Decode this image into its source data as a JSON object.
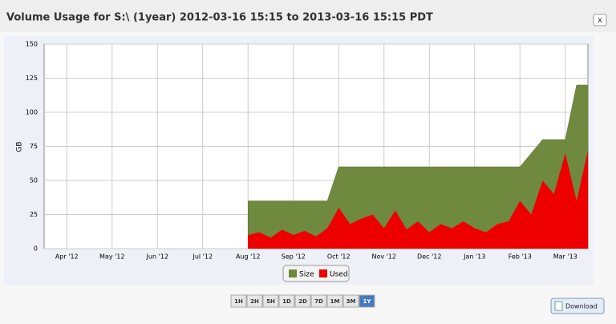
{
  "chart_data": {
    "type": "area",
    "title": "Volume Usage for S:\\ (1year) 2012-03-16 15:15 to 2013-03-16 15:15 PDT",
    "y_label": "GB",
    "categories": [
      null,
      null,
      "Apr '12",
      null,
      null,
      null,
      "May '12",
      null,
      null,
      null,
      "Jun '12",
      null,
      null,
      null,
      "Jul '12",
      null,
      null,
      null,
      "Aug '12",
      null,
      null,
      null,
      "Sep '12",
      null,
      null,
      null,
      "Oct '12",
      null,
      null,
      null,
      "Nov '12",
      null,
      null,
      null,
      "Dec '12",
      null,
      null,
      null,
      "Jan '13",
      null,
      null,
      null,
      "Feb '13",
      null,
      null,
      null,
      "Mar '13",
      null,
      null
    ],
    "series": [
      {
        "name": "Size",
        "color": "#6f8a3f",
        "values": [
          null,
          null,
          null,
          null,
          null,
          null,
          null,
          null,
          null,
          null,
          null,
          null,
          null,
          null,
          null,
          null,
          null,
          null,
          35,
          35,
          35,
          35,
          35,
          35,
          35,
          35,
          60,
          60,
          60,
          60,
          60,
          60,
          60,
          60,
          60,
          60,
          60,
          60,
          60,
          60,
          60,
          60,
          60,
          70,
          80,
          80,
          80,
          120,
          120
        ]
      },
      {
        "name": "Used",
        "color": "#ee0000",
        "values": [
          null,
          null,
          null,
          null,
          null,
          null,
          null,
          null,
          null,
          null,
          null,
          null,
          null,
          null,
          null,
          null,
          null,
          null,
          10,
          12,
          8,
          14,
          10,
          13,
          9,
          15,
          30,
          18,
          22,
          25,
          15,
          28,
          14,
          20,
          12,
          18,
          15,
          20,
          15,
          12,
          18,
          20,
          35,
          25,
          50,
          40,
          70,
          35,
          72
        ]
      }
    ],
    "ylim": [
      0,
      150
    ],
    "yticks": [
      0,
      25,
      50,
      75,
      100,
      125,
      150
    ],
    "grid": true,
    "legend": "bottom"
  },
  "ui": {
    "close": "x",
    "range_buttons": [
      "1H",
      "2H",
      "5H",
      "1D",
      "2D",
      "7D",
      "1M",
      "3M",
      "1Y"
    ],
    "selected": 8,
    "download": "Download"
  }
}
